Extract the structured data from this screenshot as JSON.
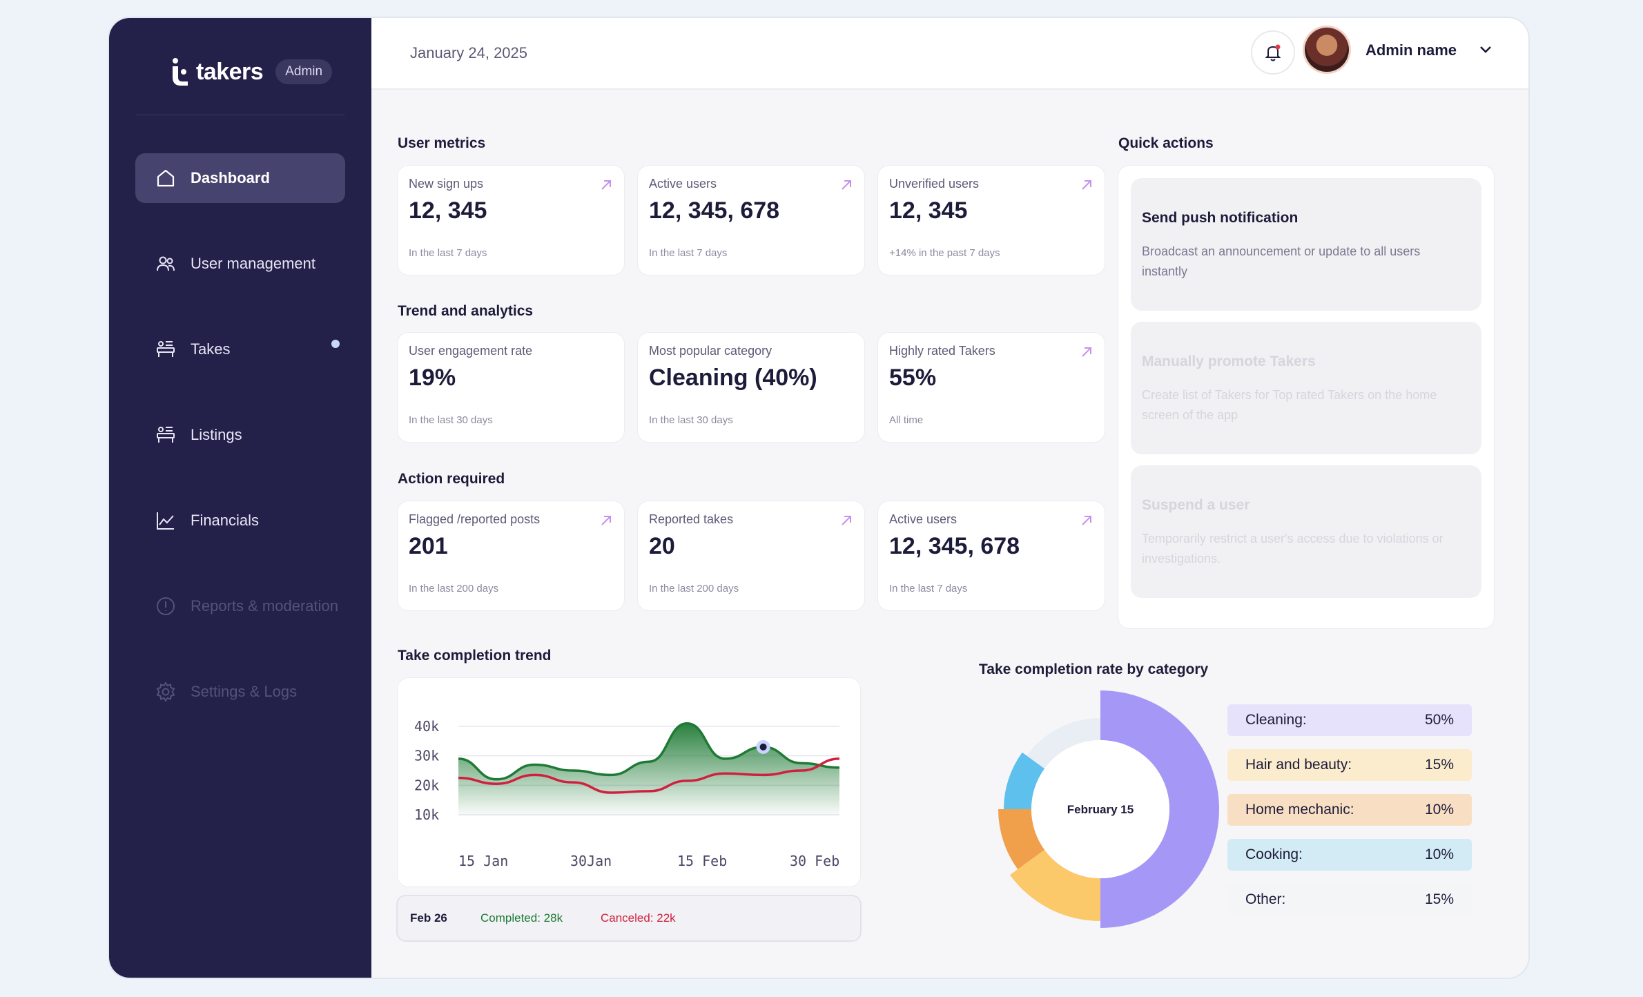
{
  "brand": {
    "name": "takers",
    "badge": "Admin"
  },
  "sidebar": {
    "items": [
      {
        "label": "Dashboard",
        "icon": "home-icon",
        "state": "active"
      },
      {
        "label": "User management",
        "icon": "users-icon",
        "state": "normal"
      },
      {
        "label": "Takes",
        "icon": "takes-icon",
        "state": "normal",
        "dot": true
      },
      {
        "label": "Listings",
        "icon": "listings-icon",
        "state": "normal"
      },
      {
        "label": "Financials",
        "icon": "chart-line-icon",
        "state": "normal"
      },
      {
        "label": "Reports & moderation",
        "icon": "alert-circle-icon",
        "state": "disabled"
      },
      {
        "label": "Settings & Logs",
        "icon": "gear-icon",
        "state": "disabled"
      }
    ]
  },
  "header": {
    "date": "January 24, 2025",
    "user_name": "Admin name"
  },
  "sections": {
    "user_metrics": "User metrics",
    "trend": "Trend and analytics",
    "action": "Action required",
    "quick_actions": "Quick actions",
    "completion_trend": "Take completion trend",
    "completion_by_category": "Take completion rate by category"
  },
  "user_metrics": [
    {
      "label": "New sign ups",
      "value": "12, 345",
      "sub": "In the last 7 days",
      "arrow": true
    },
    {
      "label": "Active users",
      "value": "12, 345, 678",
      "sub": "In the last 7 days",
      "arrow": true
    },
    {
      "label": "Unverified users",
      "value": "12, 345",
      "sub": "+14% in the past 7 days",
      "arrow": true
    }
  ],
  "trend_metrics": [
    {
      "label": "User engagement rate",
      "value": "19%",
      "sub": "In the last 30 days",
      "arrow": false
    },
    {
      "label": "Most popular category",
      "value": "Cleaning (40%)",
      "sub": "In the last 30 days",
      "arrow": false
    },
    {
      "label": "Highly rated Takers",
      "value": "55%",
      "sub": "All time",
      "arrow": true
    }
  ],
  "action_metrics": [
    {
      "label": "Flagged /reported posts",
      "value": "201",
      "sub": "In the last 200 days",
      "arrow": true
    },
    {
      "label": "Reported takes",
      "value": "20",
      "sub": "In the last 200 days",
      "arrow": true
    },
    {
      "label": "Active users",
      "value": "12, 345, 678",
      "sub": "In the last 7 days",
      "arrow": true
    }
  ],
  "quick_actions": [
    {
      "title": "Send push notification",
      "desc": "Broadcast an announcement or update to all users instantly",
      "enabled": true
    },
    {
      "title": "Manually promote Takers",
      "desc": "Create list of Takers for Top rated Takers on the home screen of the app",
      "enabled": false
    },
    {
      "title": "Suspend a user",
      "desc": "Temporarily restrict a user's access due to violations or investigations.",
      "enabled": false
    }
  ],
  "chart_data": [
    {
      "type": "line",
      "title": "Take completion trend",
      "y_ticks": [
        "40k",
        "30k",
        "20k",
        "10k"
      ],
      "ylim": [
        10000,
        40000
      ],
      "x_ticks": [
        "15 Jan",
        "30Jan",
        "15 Feb",
        "30 Feb"
      ],
      "series": [
        {
          "name": "Completed",
          "color": "#1f7a35",
          "values": [
            29000,
            22000,
            27000,
            25000,
            23500,
            28000,
            41000,
            29000,
            33000,
            27500,
            26000
          ]
        },
        {
          "name": "Canceled",
          "color": "#d0203f",
          "values": [
            22500,
            20500,
            23500,
            21000,
            17500,
            18000,
            21500,
            24000,
            23500,
            25000,
            29000
          ]
        }
      ],
      "highlight": {
        "date": "Feb 26",
        "completed": "Completed: 28k",
        "canceled": "Canceled: 22k"
      }
    },
    {
      "type": "pie",
      "title": "Take completion rate by category",
      "center_label": "February 15",
      "slices": [
        {
          "label": "Cleaning:",
          "value": 50,
          "display": "50%",
          "color": "#a597f5",
          "row_bg": "#e7e2fb"
        },
        {
          "label": "Hair and beauty:",
          "value": 15,
          "display": "15%",
          "color": "#fbc86a",
          "row_bg": "#fbeccd"
        },
        {
          "label": "Home mechanic:",
          "value": 10,
          "display": "10%",
          "color": "#f0a04a",
          "row_bg": "#f8dfc3"
        },
        {
          "label": "Cooking:",
          "value": 10,
          "display": "10%",
          "color": "#5ec0ec",
          "row_bg": "#d3ebf5"
        },
        {
          "label": "Other:",
          "value": 15,
          "display": "15%",
          "color": "#e9eef4",
          "row_bg": "#f3f5f7"
        }
      ]
    }
  ]
}
